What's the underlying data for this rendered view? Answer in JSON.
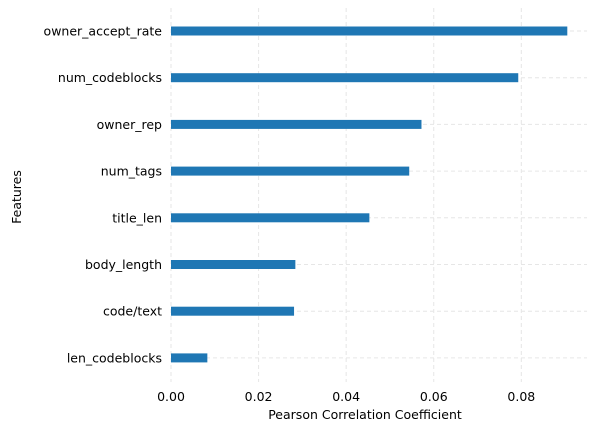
{
  "chart_data": {
    "type": "bar",
    "orientation": "horizontal",
    "categories": [
      "owner_accept_rate",
      "num_codeblocks",
      "owner_rep",
      "num_tags",
      "title_len",
      "body_length",
      "code/text",
      "len_codeblocks"
    ],
    "values": [
      0.0905,
      0.0793,
      0.0572,
      0.0544,
      0.0453,
      0.0284,
      0.0281,
      0.0083
    ],
    "xlabel": "Pearson Correlation Coefficient",
    "ylabel": "Features",
    "xlim": [
      0,
      0.095
    ],
    "xticks": [
      0,
      0.02,
      0.04,
      0.06,
      0.08
    ],
    "xtick_labels": [
      "0.00",
      "0.02",
      "0.04",
      "0.06",
      "0.08"
    ],
    "grid": true,
    "grid_style": "dashed",
    "bar_color": "#1f77b4",
    "grid_color": "#e6e6e6"
  }
}
